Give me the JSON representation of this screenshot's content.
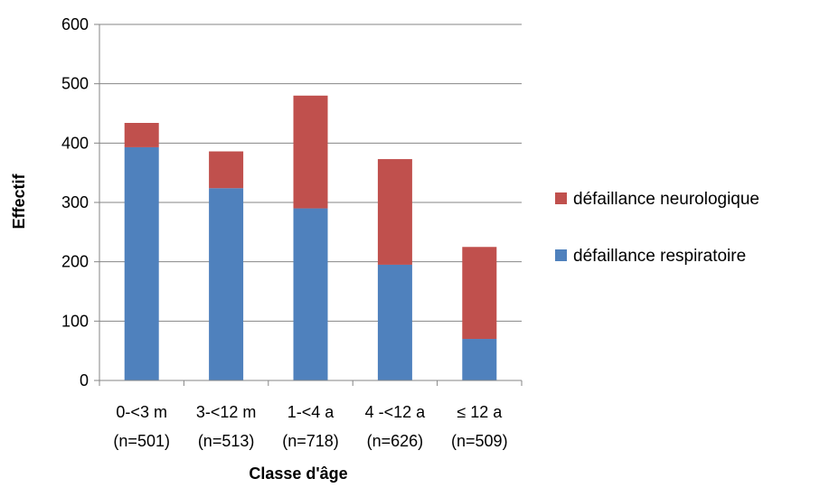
{
  "chart_data": {
    "type": "bar",
    "stacked": true,
    "categories": [
      [
        "0-<3 m",
        "(n=501)"
      ],
      [
        "3-<12 m",
        "(n=513)"
      ],
      [
        "1-<4 a",
        "(n=718)"
      ],
      [
        "4 -<12 a",
        "(n=626)"
      ],
      [
        "≤ 12 a",
        "(n=509)"
      ]
    ],
    "series": [
      {
        "name": "défaillance respiratoire",
        "color": "#4F81BD",
        "values": [
          393,
          324,
          290,
          195,
          70
        ]
      },
      {
        "name": "défaillance neurologique",
        "color": "#C0504D",
        "values": [
          41,
          62,
          190,
          178,
          155
        ]
      }
    ],
    "xlabel": "Classe d'âge",
    "ylabel": "Effectif",
    "ylim": [
      0,
      600
    ],
    "yticks": [
      0,
      100,
      200,
      300,
      400,
      500,
      600
    ],
    "grid": true,
    "legend_position": "right",
    "legend_order": [
      "défaillance neurologique",
      "défaillance respiratoire"
    ]
  }
}
